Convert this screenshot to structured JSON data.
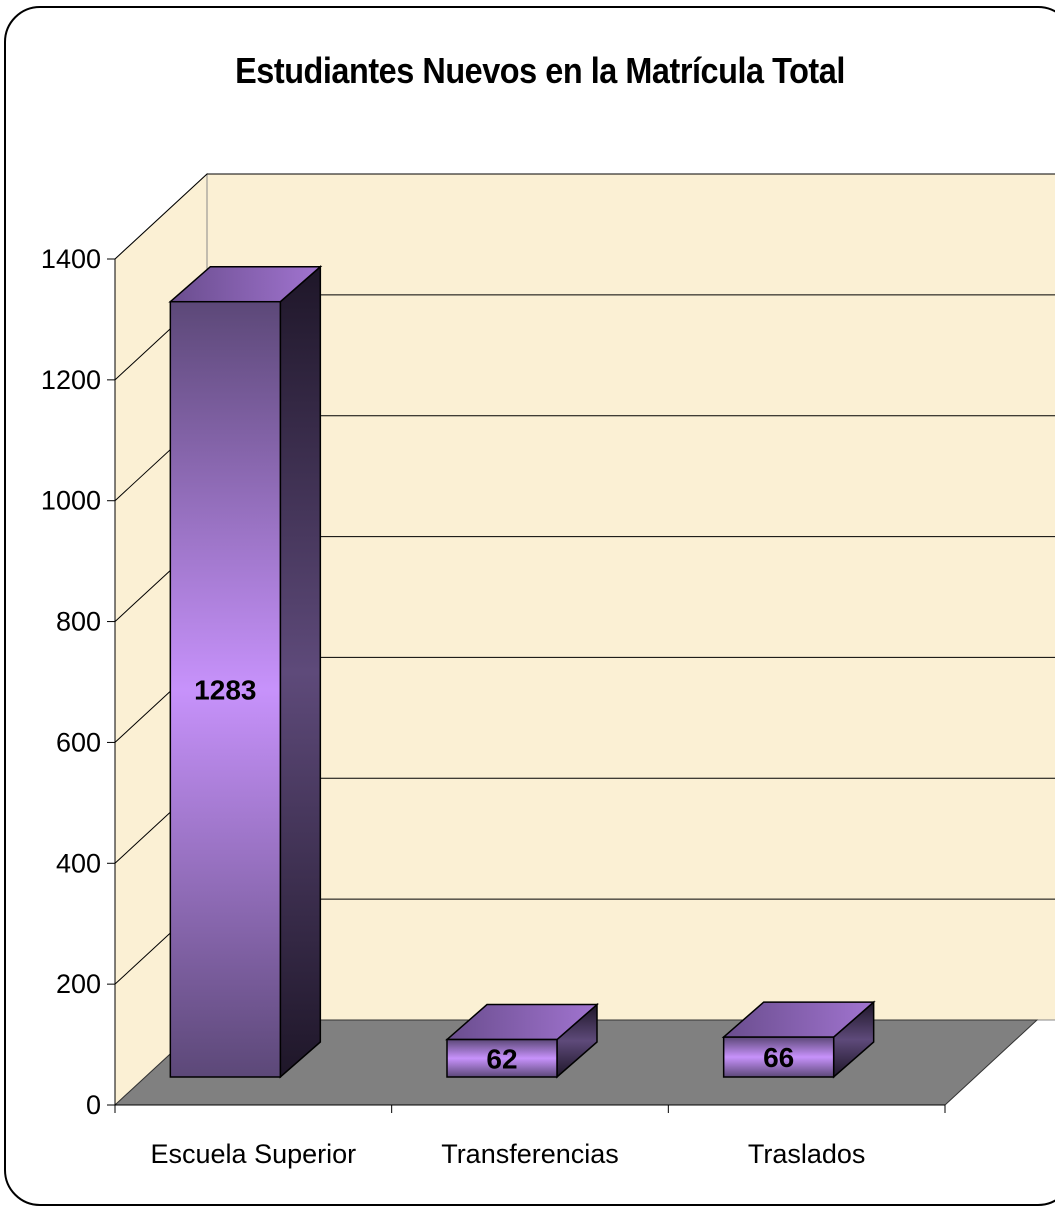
{
  "chart_data": {
    "type": "bar",
    "title": "Estudiantes Nuevos en la Matrícula Total",
    "categories": [
      "Escuela Superior",
      "Transferencias",
      "Traslados"
    ],
    "values": [
      1283,
      62,
      66
    ],
    "data_labels": [
      "1283",
      "62",
      "66"
    ],
    "ylim": [
      0,
      1400
    ],
    "yticks": [
      0,
      200,
      400,
      600,
      800,
      1000,
      1200,
      1400
    ],
    "ytick_labels": [
      "0",
      "200",
      "400",
      "600",
      "800",
      "1000",
      "1200",
      "1400"
    ],
    "xlabel": "",
    "ylabel": "",
    "grid": true,
    "legend": "none",
    "style": "3d-column"
  },
  "colors": {
    "wall": "#fbf0d4",
    "floor": "#808080",
    "bar_face_light": "#c58ff5",
    "bar_face_dark": "#5a4575",
    "bar_side": "#2a1f38",
    "bar_top": "#8a5fb5"
  }
}
